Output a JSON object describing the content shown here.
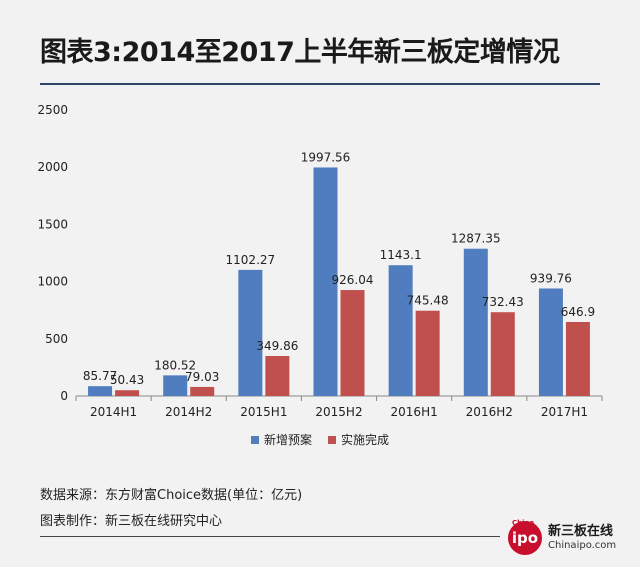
{
  "title": "图表3:2014至2017上半年新三板定增情况",
  "chart_data": {
    "type": "bar",
    "categories": [
      "2014H1",
      "2014H2",
      "2015H1",
      "2015H2",
      "2016H1",
      "2016H2",
      "2017H1"
    ],
    "series": [
      {
        "name": "新增预案",
        "values": [
          85.77,
          180.52,
          1102.27,
          1997.56,
          1143.1,
          1287.35,
          939.76
        ],
        "labels": [
          "85.77",
          "180.52",
          "1102.27",
          "1997.56",
          "1143.1",
          "1287.35",
          "939.76"
        ],
        "color": "#4f7dbf"
      },
      {
        "name": "实施完成",
        "values": [
          50.43,
          79.03,
          349.86,
          926.04,
          745.48,
          732.43,
          646.9
        ],
        "labels": [
          "50.43",
          "79.03",
          "349.86",
          "926.04",
          "745.48",
          "732.43",
          "646.9"
        ],
        "color": "#c0504d"
      }
    ],
    "ylim": [
      0,
      2500
    ],
    "yticks": [
      "0",
      "500",
      "1000",
      "1500",
      "2000",
      "2500"
    ],
    "legend_position": "bottom"
  },
  "source_text": "数据来源：东方财富Choice数据(单位：亿元)",
  "maker_text": "图表制作：新三板在线研究中心",
  "logo": {
    "badge": "ipo",
    "small": "China",
    "name_cn": "新三板在线",
    "name_en": "Chinaipo.com"
  }
}
